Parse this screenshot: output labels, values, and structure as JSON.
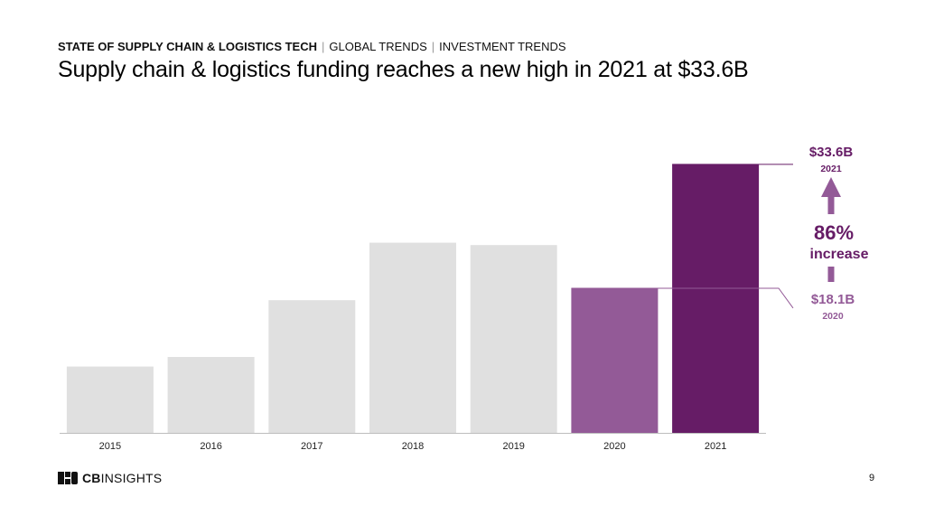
{
  "header": {
    "breadcrumb": [
      "STATE OF SUPPLY CHAIN & LOGISTICS TECH",
      "GLOBAL TRENDS",
      "INVESTMENT TRENDS"
    ],
    "title": "Supply chain & logistics funding reaches a new high in 2021 at $33.6B"
  },
  "chart_data": {
    "type": "bar",
    "categories": [
      "2015",
      "2016",
      "2017",
      "2018",
      "2019",
      "2020",
      "2021"
    ],
    "values": [
      8.3,
      9.5,
      16.6,
      23.8,
      23.5,
      18.1,
      33.6
    ],
    "ylim": [
      0,
      38
    ],
    "grid": false,
    "colors": [
      "#e0e0e0",
      "#e0e0e0",
      "#e0e0e0",
      "#e0e0e0",
      "#e0e0e0",
      "#935a97",
      "#661c66"
    ],
    "annotations": {
      "high": {
        "value": "$33.6B",
        "year": "2021",
        "color": "#661c66"
      },
      "low": {
        "value": "$18.1B",
        "year": "2020",
        "color": "#935a97"
      },
      "change": {
        "percent": "86%",
        "label": "increase",
        "arrow_color": "#935a97",
        "text_color": "#661c66"
      }
    }
  },
  "footer": {
    "logo_bold": "CB",
    "logo_light": "INSIGHTS",
    "page_number": "9"
  }
}
